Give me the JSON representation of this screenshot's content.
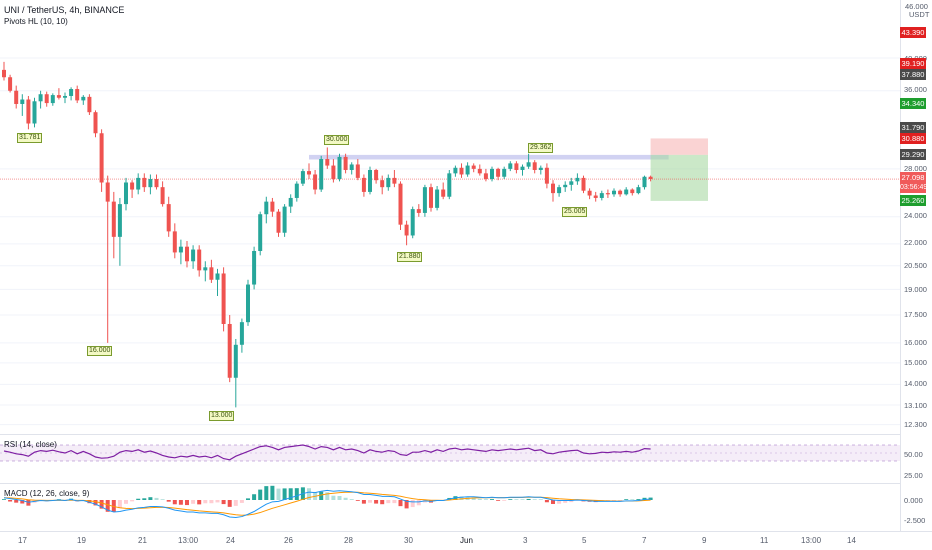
{
  "header": {
    "symbol": "UNI / TetherUS, 4h, BINANCE",
    "indicator": "Pivots HL (10, 10)"
  },
  "price_axis": {
    "currency": "USDT",
    "top_label": "46.000",
    "labels": [
      "40.000",
      "36.000",
      "28.000",
      "24.000",
      "22.000",
      "20.500",
      "19.000",
      "17.500",
      "16.000",
      "15.000",
      "14.000",
      "13.100",
      "12.300"
    ]
  },
  "price_tags": [
    {
      "value": "43.390",
      "color": "#e02020"
    },
    {
      "value": "39.190",
      "color": "#e02020"
    },
    {
      "value": "37.880",
      "color": "#4a4a4a"
    },
    {
      "value": "34.340",
      "color": "#1e9e2e"
    },
    {
      "value": "31.790",
      "color": "#4a4a4a"
    },
    {
      "value": "30.880",
      "color": "#e02020"
    },
    {
      "value": "29.290",
      "color": "#4a4a4a"
    },
    {
      "value": "27.098",
      "color": "#f05a5a"
    },
    {
      "value": "03:56:49",
      "color": "#f05a5a"
    },
    {
      "value": "25.260",
      "color": "#1e9e2e"
    }
  ],
  "pivots": [
    {
      "label": "31.781"
    },
    {
      "label": "16.000"
    },
    {
      "label": "13.000"
    },
    {
      "label": "30.000"
    },
    {
      "label": "21.880"
    },
    {
      "label": "29.362"
    },
    {
      "label": "25.005"
    }
  ],
  "rsi": {
    "title": "RSI (14, close)",
    "labels": [
      "50.00",
      "25.00"
    ]
  },
  "macd": {
    "title": "MACD (12, 26, close, 9)",
    "labels": [
      "0.000",
      "-2.500"
    ]
  },
  "time_axis": [
    "17",
    "19",
    "21",
    "13:00",
    "24",
    "26",
    "28",
    "30",
    "Jun",
    "3",
    "5",
    "7",
    "9",
    "11",
    "13:00",
    "14"
  ],
  "colors": {
    "up": "#26a69a",
    "down": "#ef5350",
    "rsi": "#7e1fa3",
    "macd": "#2196f3",
    "signal": "#ff9800"
  },
  "chart_data": {
    "type": "candlestick",
    "title": "UNI / TetherUS, 4h, BINANCE",
    "candles": [
      [
        38.5,
        39.5,
        37.2,
        37.6
      ],
      [
        37.6,
        37.9,
        35.8,
        36.0
      ],
      [
        36.0,
        36.6,
        34.0,
        34.5
      ],
      [
        34.5,
        35.6,
        33.2,
        35.0
      ],
      [
        35.0,
        35.4,
        31.8,
        32.4
      ],
      [
        32.4,
        35.2,
        32.0,
        34.8
      ],
      [
        34.8,
        36.0,
        34.0,
        35.6
      ],
      [
        35.6,
        35.9,
        34.2,
        34.6
      ],
      [
        34.6,
        35.7,
        34.3,
        35.5
      ],
      [
        35.5,
        36.3,
        35.0,
        35.2
      ],
      [
        35.2,
        35.8,
        34.6,
        35.4
      ],
      [
        35.4,
        36.4,
        34.9,
        36.2
      ],
      [
        36.2,
        36.6,
        34.6,
        34.9
      ],
      [
        34.9,
        35.5,
        34.4,
        35.3
      ],
      [
        35.3,
        35.6,
        33.3,
        33.6
      ],
      [
        33.6,
        33.8,
        31.0,
        31.4
      ],
      [
        31.4,
        31.8,
        26.0,
        26.8
      ],
      [
        26.8,
        27.4,
        16.0,
        25.2
      ],
      [
        25.2,
        26.0,
        21.0,
        22.5
      ],
      [
        22.5,
        25.5,
        20.5,
        25.0
      ],
      [
        25.0,
        27.2,
        24.5,
        26.8
      ],
      [
        26.8,
        27.0,
        25.5,
        26.2
      ],
      [
        26.2,
        27.6,
        25.8,
        27.2
      ],
      [
        27.2,
        27.6,
        26.0,
        26.4
      ],
      [
        26.4,
        27.5,
        25.8,
        27.1
      ],
      [
        27.1,
        27.5,
        26.2,
        26.4
      ],
      [
        26.4,
        26.9,
        24.8,
        25.0
      ],
      [
        25.0,
        25.6,
        22.5,
        22.9
      ],
      [
        22.9,
        23.5,
        21.0,
        21.4
      ],
      [
        21.4,
        22.3,
        20.6,
        21.8
      ],
      [
        21.8,
        22.2,
        20.4,
        20.8
      ],
      [
        20.8,
        21.9,
        20.3,
        21.6
      ],
      [
        21.6,
        21.9,
        19.8,
        20.2
      ],
      [
        20.2,
        20.8,
        19.5,
        20.4
      ],
      [
        20.4,
        20.9,
        19.4,
        19.6
      ],
      [
        19.6,
        20.3,
        18.6,
        20.0
      ],
      [
        20.0,
        20.4,
        16.6,
        17.0
      ],
      [
        17.0,
        17.5,
        14.1,
        14.3
      ],
      [
        14.3,
        16.2,
        13.0,
        15.9
      ],
      [
        15.9,
        17.3,
        15.5,
        17.1
      ],
      [
        17.1,
        19.6,
        16.9,
        19.3
      ],
      [
        19.3,
        21.8,
        19.0,
        21.5
      ],
      [
        21.5,
        24.4,
        21.2,
        24.2
      ],
      [
        24.2,
        25.6,
        23.5,
        25.2
      ],
      [
        25.2,
        25.5,
        24.0,
        24.4
      ],
      [
        24.4,
        24.6,
        22.5,
        22.8
      ],
      [
        22.8,
        25.0,
        22.5,
        24.8
      ],
      [
        24.8,
        25.8,
        24.3,
        25.5
      ],
      [
        25.5,
        26.9,
        25.2,
        26.7
      ],
      [
        26.7,
        28.0,
        26.5,
        27.8
      ],
      [
        27.8,
        28.5,
        27.1,
        27.5
      ],
      [
        27.5,
        27.9,
        25.8,
        26.2
      ],
      [
        26.2,
        29.2,
        26.0,
        28.9
      ],
      [
        28.9,
        30.0,
        28.0,
        28.3
      ],
      [
        28.3,
        28.9,
        26.8,
        27.1
      ],
      [
        27.1,
        29.4,
        26.9,
        29.1
      ],
      [
        29.1,
        29.4,
        27.6,
        27.9
      ],
      [
        27.9,
        28.6,
        27.5,
        28.4
      ],
      [
        28.4,
        28.9,
        27.0,
        27.2
      ],
      [
        27.2,
        27.5,
        25.6,
        26.0
      ],
      [
        26.0,
        28.2,
        25.8,
        27.9
      ],
      [
        27.9,
        28.0,
        26.7,
        27.0
      ],
      [
        27.0,
        27.4,
        25.8,
        26.4
      ],
      [
        26.4,
        27.5,
        26.1,
        27.2
      ],
      [
        27.2,
        27.9,
        26.4,
        26.7
      ],
      [
        26.7,
        26.9,
        23.0,
        23.4
      ],
      [
        23.4,
        23.7,
        21.9,
        22.6
      ],
      [
        22.6,
        24.8,
        22.4,
        24.6
      ],
      [
        24.6,
        25.0,
        24.0,
        24.3
      ],
      [
        24.3,
        26.6,
        24.0,
        26.4
      ],
      [
        26.4,
        26.7,
        24.4,
        24.7
      ],
      [
        24.7,
        26.5,
        24.5,
        26.2
      ],
      [
        26.2,
        26.8,
        25.4,
        25.6
      ],
      [
        25.6,
        27.9,
        25.4,
        27.6
      ],
      [
        27.6,
        28.3,
        27.3,
        28.1
      ],
      [
        28.1,
        28.5,
        27.2,
        27.5
      ],
      [
        27.5,
        28.6,
        27.3,
        28.3
      ],
      [
        28.3,
        28.5,
        27.7,
        28.0
      ],
      [
        28.0,
        28.4,
        27.4,
        27.6
      ],
      [
        27.6,
        28.0,
        26.9,
        27.1
      ],
      [
        27.1,
        28.2,
        26.9,
        28.0
      ],
      [
        28.0,
        28.1,
        27.0,
        27.3
      ],
      [
        27.3,
        28.2,
        27.1,
        28.0
      ],
      [
        28.0,
        28.7,
        27.8,
        28.5
      ],
      [
        28.5,
        28.7,
        27.6,
        27.9
      ],
      [
        27.9,
        28.4,
        27.4,
        28.2
      ],
      [
        28.2,
        29.4,
        28.0,
        28.6
      ],
      [
        28.6,
        28.8,
        27.6,
        27.9
      ],
      [
        27.9,
        28.3,
        27.5,
        28.1
      ],
      [
        28.1,
        28.5,
        26.3,
        26.7
      ],
      [
        26.7,
        27.0,
        25.2,
        25.9
      ],
      [
        25.9,
        26.6,
        25.6,
        26.4
      ],
      [
        26.4,
        26.9,
        26.0,
        26.6
      ],
      [
        26.6,
        27.2,
        26.1,
        26.9
      ],
      [
        26.9,
        27.6,
        26.6,
        27.2
      ],
      [
        27.2,
        27.4,
        25.9,
        26.1
      ],
      [
        26.1,
        26.3,
        25.4,
        25.7
      ],
      [
        25.7,
        26.0,
        25.2,
        25.5
      ],
      [
        25.5,
        26.1,
        25.3,
        25.9
      ],
      [
        25.9,
        26.2,
        25.5,
        25.8
      ],
      [
        25.8,
        26.3,
        25.6,
        26.1
      ],
      [
        26.1,
        26.2,
        25.6,
        25.8
      ],
      [
        25.8,
        26.4,
        25.7,
        26.2
      ],
      [
        26.2,
        26.3,
        25.7,
        25.9
      ],
      [
        25.9,
        26.6,
        25.8,
        26.4
      ],
      [
        26.4,
        27.4,
        26.2,
        27.3
      ],
      [
        27.3,
        27.4,
        26.9,
        27.1
      ]
    ],
    "resistance_zone": [
      29.29,
      28.95
    ],
    "position": {
      "target": 25.26,
      "entry": 29.29,
      "stop": 30.88
    },
    "current_price": 27.098,
    "rsi": [
      55,
      52,
      48,
      46,
      42,
      52,
      56,
      54,
      57,
      53,
      50,
      56,
      48,
      54,
      48,
      40,
      37,
      38,
      42,
      52,
      56,
      54,
      58,
      52,
      55,
      50,
      44,
      40,
      38,
      42,
      40,
      44,
      40,
      42,
      38,
      44,
      36,
      33,
      42,
      48,
      54,
      60,
      66,
      68,
      64,
      58,
      64,
      66,
      68,
      70,
      66,
      60,
      66,
      64,
      58,
      64,
      58,
      60,
      56,
      50,
      58,
      54,
      52,
      56,
      54,
      46,
      44,
      52,
      52,
      56,
      52,
      58,
      54,
      60,
      62,
      58,
      60,
      58,
      56,
      54,
      58,
      56,
      58,
      60,
      58,
      60,
      62,
      56,
      58,
      50,
      48,
      52,
      54,
      56,
      57,
      50,
      48,
      49,
      52,
      51,
      53,
      52,
      54,
      52,
      55,
      61,
      60
    ],
    "macd": [
      0.5,
      0.3,
      0.1,
      -0.1,
      -0.5,
      -0.3,
      -0.1,
      -0.2,
      -0.1,
      0.0,
      -0.1,
      0.1,
      -0.2,
      -0.1,
      -0.5,
      -0.9,
      -1.5,
      -2.2,
      -2.6,
      -2.5,
      -2.2,
      -2.0,
      -1.7,
      -1.6,
      -1.4,
      -1.4,
      -1.5,
      -1.8,
      -2.2,
      -2.4,
      -2.6,
      -2.6,
      -2.8,
      -2.8,
      -2.9,
      -2.9,
      -3.2,
      -3.7,
      -3.8,
      -3.6,
      -3.1,
      -2.5,
      -1.7,
      -0.9,
      -0.4,
      -0.3,
      0.1,
      0.5,
      0.9,
      1.4,
      1.7,
      1.6,
      1.9,
      2.1,
      1.9,
      2.0,
      1.9,
      1.8,
      1.6,
      1.2,
      1.2,
      1.0,
      0.8,
      0.8,
      0.7,
      0.2,
      -0.3,
      -0.4,
      -0.4,
      -0.2,
      -0.3,
      -0.1,
      -0.1,
      0.2,
      0.5,
      0.6,
      0.7,
      0.7,
      0.6,
      0.5,
      0.6,
      0.5,
      0.5,
      0.6,
      0.6,
      0.6,
      0.7,
      0.6,
      0.6,
      0.3,
      0.0,
      -0.1,
      -0.1,
      -0.1,
      0.0,
      -0.1,
      -0.2,
      -0.3,
      -0.3,
      -0.3,
      -0.3,
      -0.3,
      -0.2,
      -0.2,
      -0.1,
      0.1,
      0.2
    ]
  }
}
